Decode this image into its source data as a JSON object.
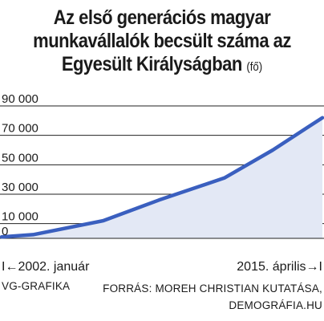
{
  "header": {
    "title_lines": [
      "Az első generációs magyar",
      "munkavállalók becsült száma az",
      "Egyesült Királyságban"
    ],
    "title_unit": "(fő)"
  },
  "colors": {
    "line": "#3a5fbf",
    "area": "#e3e8f5",
    "grid": "#222222",
    "text": "#1a1a1a"
  },
  "chart_data": {
    "type": "area",
    "title": "Az első generációs magyar munkavállalók becsült száma az Egyesült Királyságban (fő)",
    "xlabel": "",
    "ylabel": "",
    "x": [
      2002.0,
      2003.3,
      2006.2,
      2008.5,
      2011.2,
      2013.2,
      2015.25
    ],
    "values": [
      1000,
      2500,
      12000,
      26000,
      41000,
      60000,
      82000
    ],
    "ylim": [
      0,
      90000
    ],
    "xlim": [
      2002.0,
      2015.25
    ],
    "yticks": [
      0,
      10000,
      30000,
      50000,
      70000,
      90000
    ],
    "ytick_labels": [
      "0",
      "10 000",
      "30 000",
      "50 000",
      "70 000",
      "90 000"
    ],
    "grid": true,
    "x_start_label": "I←2002. január",
    "x_end_label": "2015. április→I"
  },
  "footer": {
    "credit": "VG-GRAFIKA",
    "source_lines": [
      "FORRÁS: MOREH CHRISTIAN KUTATÁSA,",
      "DEMOGRÁFIA.HU"
    ]
  }
}
